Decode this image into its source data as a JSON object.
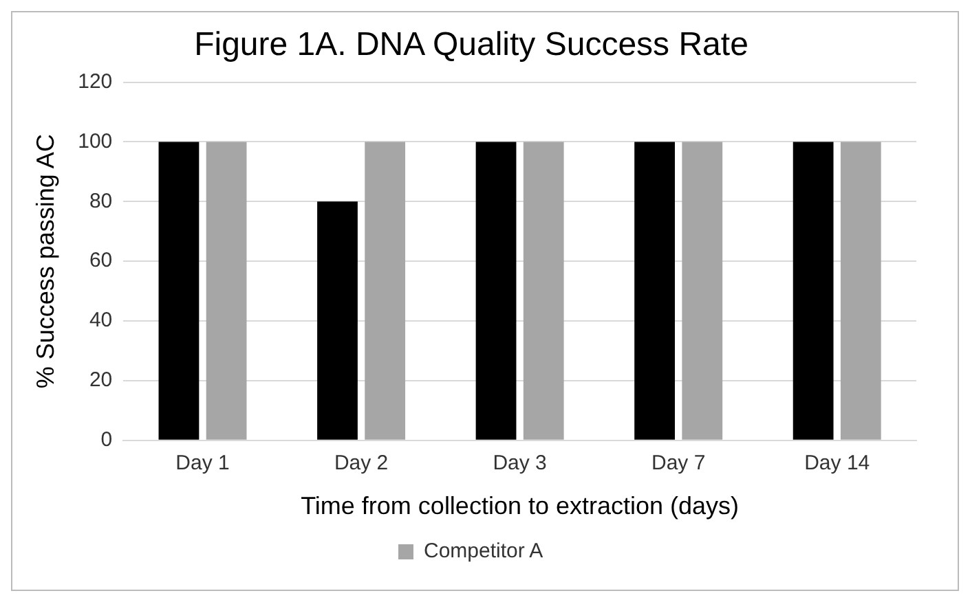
{
  "chart_data": {
    "type": "bar",
    "title": "Figure 1A. DNA Quality Success Rate",
    "xlabel": "Time from collection to extraction (days)",
    "ylabel": "% Success passing AC",
    "categories": [
      "Day 1",
      "Day 2",
      "Day 3",
      "Day 7",
      "Day 14"
    ],
    "series": [
      {
        "color": "#000000",
        "values": [
          100,
          80,
          100,
          100,
          100
        ]
      },
      {
        "name": "Competitor A",
        "color": "#a6a6a6",
        "values": [
          100,
          100,
          100,
          100,
          100
        ]
      }
    ],
    "ylim": [
      0,
      120
    ],
    "yticks": [
      0,
      20,
      40,
      60,
      80,
      100,
      120
    ],
    "grid": "y",
    "legend": "bottom"
  }
}
